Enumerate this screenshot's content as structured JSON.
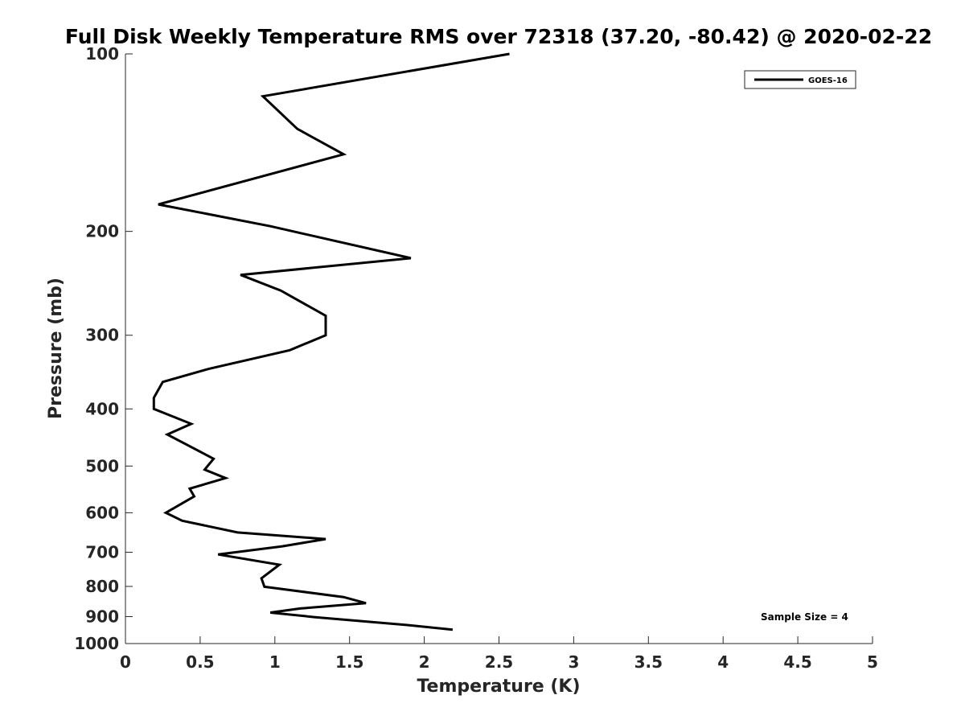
{
  "chart_data": {
    "type": "line",
    "title": "Full Disk Weekly Temperature RMS over 72318 (37.20, -80.42) @ 2020-02-22",
    "xlabel": "Temperature (K)",
    "ylabel": "Pressure (mb)",
    "xlim": [
      0,
      5
    ],
    "ylim": [
      100,
      1000
    ],
    "y_scale": "log",
    "y_reversed": true,
    "grid": false,
    "legend_position": "top-right",
    "x_ticks": [
      0,
      0.5,
      1,
      1.5,
      2,
      2.5,
      3,
      3.5,
      4,
      4.5,
      5
    ],
    "x_tick_labels": [
      "0",
      "0.5",
      "1",
      "1.5",
      "2",
      "2.5",
      "3",
      "3.5",
      "4",
      "4.5",
      "5"
    ],
    "y_ticks": [
      100,
      200,
      300,
      400,
      500,
      600,
      700,
      800,
      900,
      1000
    ],
    "y_tick_labels": [
      "100",
      "200",
      "300",
      "400",
      "500",
      "600",
      "700",
      "800",
      "900",
      "1000"
    ],
    "annotation": "Sample Size = 4",
    "series": [
      {
        "name": "GOES-16",
        "color": "#000000",
        "x": [
          2.57,
          0.92,
          1.15,
          1.46,
          0.22,
          0.97,
          1.91,
          0.77,
          1.04,
          1.34,
          1.34,
          1.1,
          0.56,
          0.25,
          0.19,
          0.19,
          0.44,
          0.28,
          0.59,
          0.53,
          0.67,
          0.43,
          0.46,
          0.27,
          0.38,
          0.75,
          1.34,
          1.05,
          0.62,
          1.03,
          0.91,
          0.93,
          1.46,
          1.61,
          1.17,
          0.97,
          1.27,
          1.88,
          2.19
        ],
        "y": [
          100,
          118,
          134,
          148,
          180,
          196,
          222,
          237,
          252,
          278,
          300,
          318,
          342,
          360,
          383,
          400,
          424,
          442,
          486,
          507,
          524,
          546,
          563,
          600,
          619,
          648,
          665,
          684,
          706,
          735,
          775,
          801,
          834,
          854,
          872,
          886,
          902,
          930,
          947
        ]
      }
    ]
  }
}
